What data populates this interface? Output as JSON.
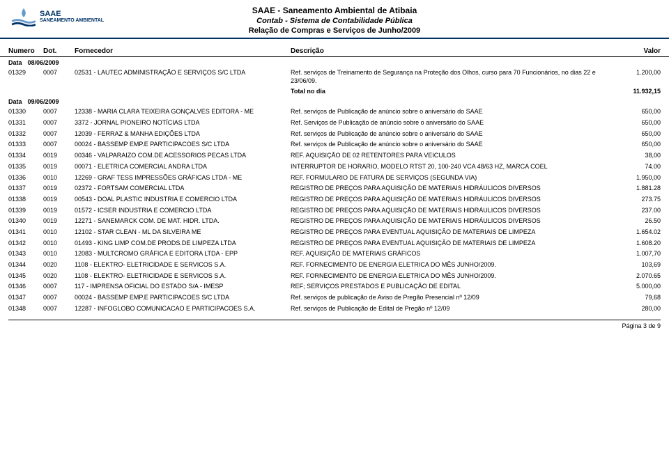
{
  "header": {
    "org": "SAAE - Saneamento Ambiental de Atibaia",
    "system": "Contab - Sistema de Contabilidade Pública",
    "report": "Relação de Compras e Serviços de Junho/2009",
    "logo_main": "SAAE",
    "logo_sub": "SANEAMENTO AMBIENTAL"
  },
  "columns": {
    "numero": "Numero",
    "dot": "Dot.",
    "fornecedor": "Fornecedor",
    "descricao": "Descrição",
    "valor": "Valor"
  },
  "data_label": "Data",
  "groups": [
    {
      "date": "08/06/2009",
      "rows": [
        {
          "num": "01329",
          "dot": "0007",
          "forn": "02531 - LAUTEC ADMINISTRAÇÃO E SERVIÇOS S/C LTDA",
          "desc": "Ref. serviços de Treinamento de Segurança na Proteção dos Olhos, curso para 70 Funcionários, no dias 22 e 23/06/09.",
          "val": "1.200,00"
        }
      ],
      "total_label": "Total no dia",
      "total": "11.932,15"
    },
    {
      "date": "09/06/2009",
      "rows": [
        {
          "num": "01330",
          "dot": "0007",
          "forn": "12338 - MARIA CLARA TEIXEIRA GONÇALVES EDITORA - ME",
          "desc": "Ref. serviços de Publicação de anúncio sobre o aniversário do SAAE",
          "val": "650,00"
        },
        {
          "num": "01331",
          "dot": "0007",
          "forn": "3372 - JORNAL PIONEIRO NOTÍCIAS LTDA",
          "desc": "Ref. Serviços de Publicação de anúncio sobre o aniversário do SAAE",
          "val": "650,00"
        },
        {
          "num": "01332",
          "dot": "0007",
          "forn": "12039 - FERRAZ & MANHA EDIÇÕES LTDA",
          "desc": "Ref. serviços de Publicação de anúncio sobre o aniversário do SAAE",
          "val": "650,00"
        },
        {
          "num": "01333",
          "dot": "0007",
          "forn": "00024 - BASSEMP EMP.E PARTICIPACOES S/C LTDA",
          "desc": "Ref. serviços de Publicação de anúncio sobre o aniversário do SAAE",
          "val": "650,00"
        },
        {
          "num": "01334",
          "dot": "0019",
          "forn": "00346 - VALPARAIZO COM.DE ACESSORIOS PECAS LTDA",
          "desc": "REF. AQUISIÇÃO DE 02 RETENTORES PARA VEICULOS",
          "val": "38,00"
        },
        {
          "num": "01335",
          "dot": "0019",
          "forn": "00071 - ELETRICA COMERCIAL ANDRA LTDA",
          "desc": "INTERRUPTOR DE HORARIO, MODELO RTST 20, 100-240 VCA 48/63 HZ, MARCA COEL",
          "val": "74.00"
        },
        {
          "num": "01336",
          "dot": "0010",
          "forn": "12269 - GRAF TESS IMPRESSÕES GRÁFICAS LTDA - ME",
          "desc": "REF. FORMULARIO DE FATURA DE SERVIÇOS (SEGUNDA VIA)",
          "val": "1.950,00"
        },
        {
          "num": "01337",
          "dot": "0019",
          "forn": "02372 - FORTSAM COMERCIAL LTDA",
          "desc": "REGISTRO DE PREÇOS PARA AQUISIÇÃO DE MATERIAIS HIDRÁULICOS DIVERSOS",
          "val": "1.881.28"
        },
        {
          "num": "01338",
          "dot": "0019",
          "forn": "00543 - DOAL PLASTIC INDUSTRIA E COMERCIO LTDA",
          "desc": "REGISTRO DE PREÇOS PARA AQUISIÇÃO DE MATERIAIS HIDRÁULICOS DIVERSOS",
          "val": "273.75"
        },
        {
          "num": "01339",
          "dot": "0019",
          "forn": "01572 - ICSER INDUSTRIA E COMERCIO LTDA",
          "desc": "REGISTRO DE PREÇOS PARA AQUISIÇÃO DE MATERIAIS HIDRÁULICOS DIVERSOS",
          "val": "237.00"
        },
        {
          "num": "01340",
          "dot": "0019",
          "forn": "12271 - SANEMARCK COM. DE MAT. HIDR. LTDA.",
          "desc": "REGISTRO DE PREÇOS PARA AQUISIÇÃO DE MATERIAIS HIDRÁULICOS DIVERSOS",
          "val": "26.50"
        },
        {
          "num": "01341",
          "dot": "0010",
          "forn": "12102 - STAR CLEAN - ML DA SILVEIRA ME",
          "desc": "REGISTRO DE PREÇOS PARA EVENTUAL AQUISIÇÃO DE MATERIAIS DE LIMPEZA",
          "val": "1.654.02"
        },
        {
          "num": "01342",
          "dot": "0010",
          "forn": "01493 - KING LIMP COM.DE PRODS.DE LIMPEZA LTDA",
          "desc": "REGISTRO DE PREÇOS PARA EVENTUAL AQUISIÇÃO DE MATERIAIS DE LIMPEZA",
          "val": "1.608.20"
        },
        {
          "num": "01343",
          "dot": "0010",
          "forn": "12083 - MULTCROMO GRÁFICA E EDITORA LTDA - EPP",
          "desc": "REF. AQUISIÇÃO DE MATERIAIS GRÁFICOS",
          "val": "1.007,70"
        },
        {
          "num": "01344",
          "dot": "0020",
          "forn": "1108 - ELEKTRO- ELETRICIDADE E SERVICOS S.A.",
          "desc": "REF. FORNECIMENTO DE ENERGIA ELETRICA DO MÊS JUNHO/2009.",
          "val": "103,69"
        },
        {
          "num": "01345",
          "dot": "0020",
          "forn": "1108 - ELEKTRO- ELETRICIDADE E SERVICOS S.A.",
          "desc": "REF. FORNECIMENTO DE ENERGIA ELETRICA DO MÊS JUNHO/2009.",
          "val": "2.070.65"
        },
        {
          "num": "01346",
          "dot": "0007",
          "forn": "117 - IMPRENSA OFICIAL DO ESTADO S/A - IMESP",
          "desc": "REF; SERVIÇOS PRESTADOS E PUBLICAÇÃO  DE EDITAL",
          "val": "5.000,00"
        },
        {
          "num": "01347",
          "dot": "0007",
          "forn": "00024 - BASSEMP EMP.E PARTICIPACOES S/C LTDA",
          "desc": "Ref. serviços de publicação de Aviso de Pregão Presencial nº 12/09",
          "val": "79,68"
        },
        {
          "num": "01348",
          "dot": "0007",
          "forn": "12287 - INFOGLOBO COMUNICACAO E PARTICIPACOES S.A.",
          "desc": "Ref. serviços de Publicação de Edital de Pregão nº 12/09",
          "val": "280,00"
        }
      ]
    }
  ],
  "footer": {
    "page": "Página 3 de 9"
  },
  "colors": {
    "text": "#000000",
    "rule": "#003366",
    "background": "#ffffff"
  }
}
